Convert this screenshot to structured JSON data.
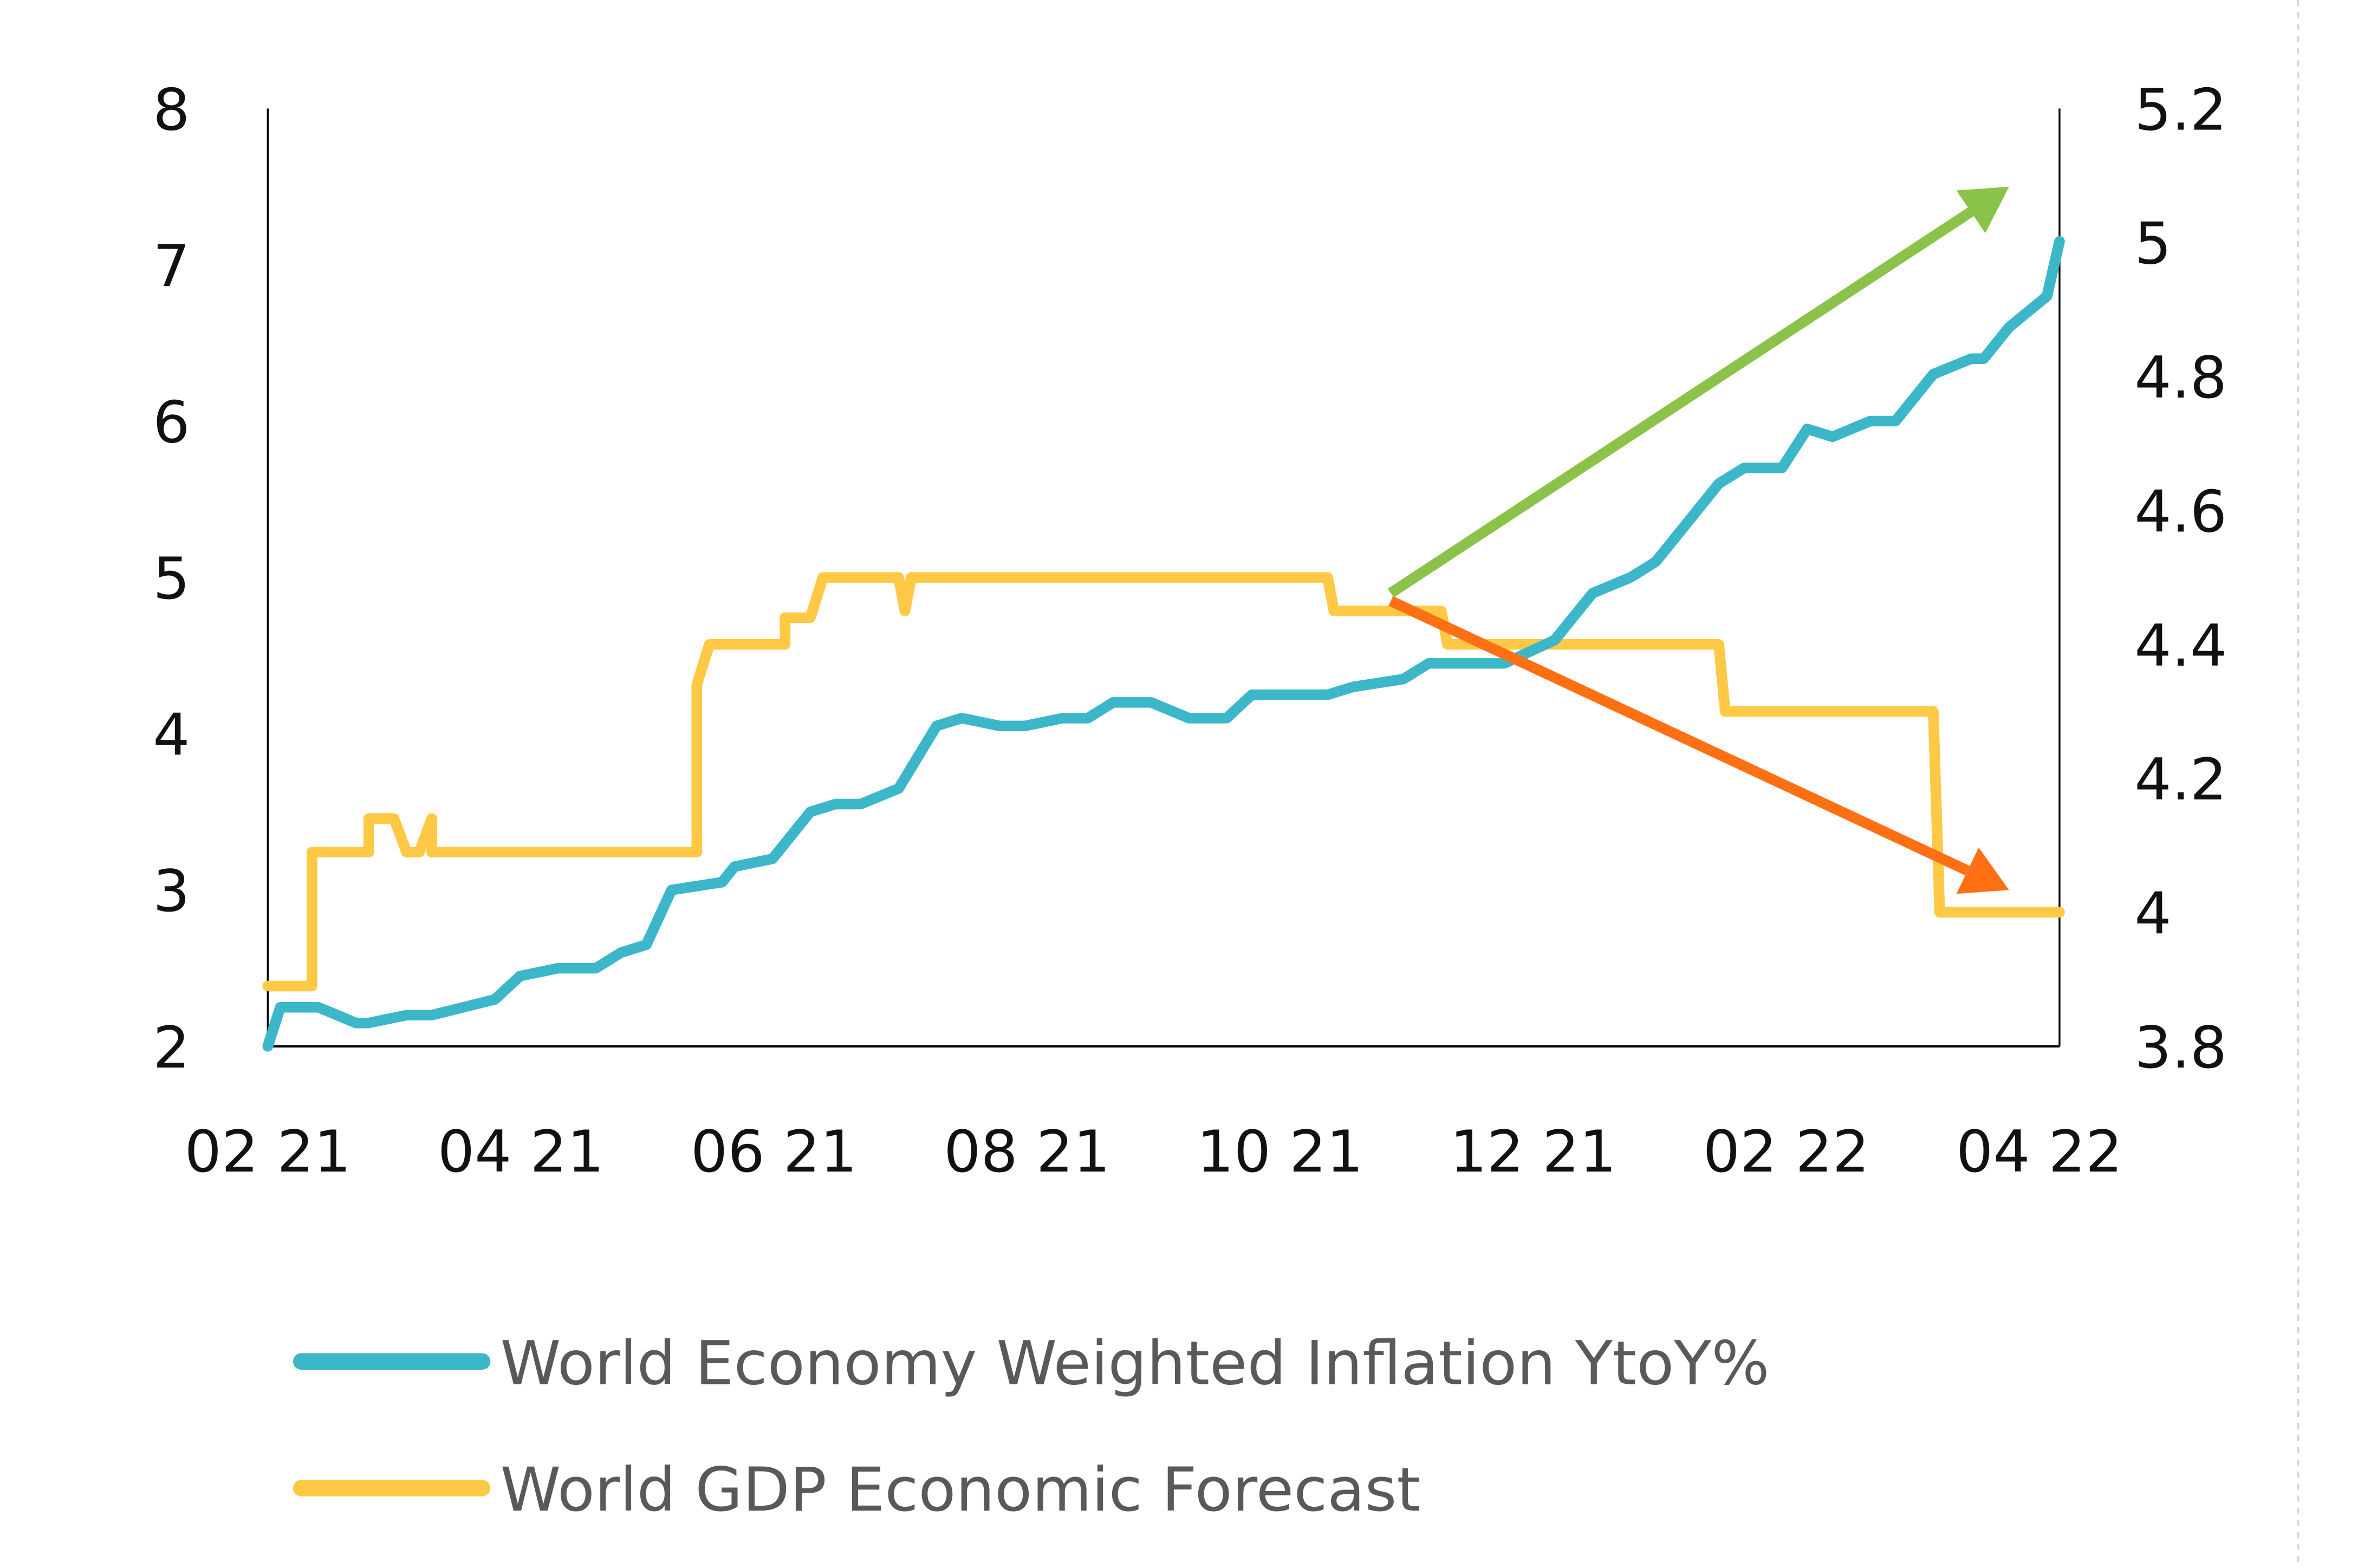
{
  "chart_data": {
    "type": "line",
    "title": "",
    "xlabel": "",
    "ylabel": "",
    "x_tick_labels": [
      "02 21",
      "04 21",
      "06 21",
      "08 21",
      "10 21",
      "12 21",
      "02 22",
      "04 22"
    ],
    "x_unit": "months since Feb 2021",
    "xlim": [
      0,
      14.2
    ],
    "left_axis": {
      "ylim": [
        2,
        8
      ],
      "ticks": [
        "2",
        "3",
        "4",
        "5",
        "6",
        "7",
        "8"
      ]
    },
    "right_axis": {
      "ylim": [
        3.8,
        5.2
      ],
      "ticks": [
        "3.8",
        "4",
        "4.2",
        "4.4",
        "4.6",
        "4.8",
        "5",
        "5.2"
      ]
    },
    "grid": false,
    "legend_position": "bottom",
    "series": [
      {
        "name": "World Economy Weighted Inflation YtoY%",
        "axis": "left",
        "color": "#3BB7C9",
        "x": [
          0,
          0.1,
          0.4,
          0.7,
          0.8,
          1.1,
          1.3,
          1.8,
          2.0,
          2.3,
          2.6,
          2.8,
          3.0,
          3.2,
          3.6,
          3.7,
          4.0,
          4.3,
          4.5,
          4.7,
          5.0,
          5.3,
          5.5,
          5.8,
          6.0,
          6.3,
          6.5,
          6.7,
          6.9,
          7.0,
          7.3,
          7.6,
          7.8,
          8.0,
          8.3,
          8.4,
          8.6,
          9.0,
          9.2,
          9.5,
          9.8,
          10.2,
          10.5,
          10.8,
          11.0,
          11.2,
          11.5,
          11.7,
          12.0,
          12.2,
          12.4,
          12.7,
          12.9,
          13.2,
          13.5,
          13.6,
          13.8,
          14.1,
          14.2
        ],
        "values": [
          2.0,
          2.25,
          2.25,
          2.15,
          2.15,
          2.2,
          2.2,
          2.3,
          2.45,
          2.5,
          2.5,
          2.6,
          2.65,
          3.0,
          3.05,
          3.15,
          3.2,
          3.5,
          3.55,
          3.55,
          3.65,
          4.05,
          4.1,
          4.05,
          4.05,
          4.1,
          4.1,
          4.2,
          4.2,
          4.2,
          4.1,
          4.1,
          4.25,
          4.25,
          4.25,
          4.25,
          4.3,
          4.35,
          4.45,
          4.45,
          4.45,
          4.6,
          4.9,
          5.0,
          5.1,
          5.3,
          5.6,
          5.7,
          5.7,
          5.95,
          5.9,
          6.0,
          6.0,
          6.3,
          6.4,
          6.4,
          6.6,
          6.8,
          7.15
        ]
      },
      {
        "name": "World GDP Economic Forecast",
        "axis": "right",
        "color": "#FFC845",
        "x": [
          0,
          0.35,
          0.35,
          0.8,
          0.8,
          1.0,
          1.1,
          1.2,
          1.3,
          1.3,
          1.4,
          1.5,
          1.5,
          3.4,
          3.4,
          3.5,
          4.1,
          4.1,
          4.3,
          4.4,
          4.5,
          5.0,
          5.05,
          5.1,
          8.4,
          8.45,
          9.3,
          9.35,
          11.5,
          11.55,
          13.2,
          13.25,
          14.2
        ],
        "values": [
          3.89,
          3.89,
          4.09,
          4.09,
          4.14,
          4.14,
          4.09,
          4.09,
          4.14,
          4.09,
          4.09,
          4.09,
          4.09,
          4.09,
          4.34,
          4.4,
          4.4,
          4.44,
          4.44,
          4.5,
          4.5,
          4.5,
          4.45,
          4.5,
          4.5,
          4.45,
          4.45,
          4.4,
          4.4,
          4.3,
          4.3,
          4.0,
          4.0
        ]
      }
    ],
    "annotations": [
      {
        "type": "arrow",
        "color": "#8BC34A",
        "from": {
          "x": 8.9,
          "y_left": 4.9
        },
        "to": {
          "x": 13.8,
          "y_left": 7.5
        },
        "meaning": "rising inflation trend"
      },
      {
        "type": "arrow",
        "color": "#FF7014",
        "from": {
          "x": 8.9,
          "y_left": 4.85
        },
        "to": {
          "x": 13.8,
          "y_left": 3.0
        },
        "meaning": "falling GDP forecast trend"
      }
    ]
  },
  "legend": {
    "items": [
      {
        "label": "World Economy Weighted Inflation YtoY%",
        "color": "#3BB7C9"
      },
      {
        "label": "World GDP Economic Forecast",
        "color": "#FFC845"
      }
    ]
  }
}
